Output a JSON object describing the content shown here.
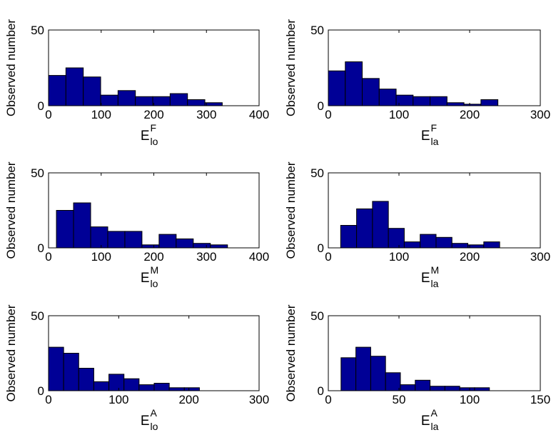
{
  "chart_data": [
    {
      "type": "bar",
      "ylabel": "Observed number",
      "xlabel": {
        "main": "E",
        "sup": "F",
        "sub": "lo"
      },
      "xlim": [
        0,
        400
      ],
      "ylim": [
        0,
        50
      ],
      "xticks": [
        0,
        100,
        200,
        300,
        400
      ],
      "yticks": [
        0,
        50
      ],
      "bin_width": 33,
      "bins_start": [
        0,
        33,
        66,
        99,
        132,
        165,
        198,
        231,
        264,
        297
      ],
      "values": [
        20,
        25,
        19,
        7,
        10,
        6,
        6,
        8,
        4,
        2
      ]
    },
    {
      "type": "bar",
      "ylabel": "Observed number",
      "xlabel": {
        "main": "E",
        "sup": "F",
        "sub": "la"
      },
      "xlim": [
        0,
        300
      ],
      "ylim": [
        0,
        50
      ],
      "xticks": [
        0,
        100,
        200,
        300
      ],
      "yticks": [
        0,
        50
      ],
      "bin_width": 24,
      "bins_start": [
        0,
        24,
        48,
        72,
        96,
        120,
        144,
        168,
        192,
        216
      ],
      "values": [
        23,
        29,
        18,
        11,
        7,
        6,
        6,
        2,
        1,
        4
      ]
    },
    {
      "type": "bar",
      "ylabel": "Observed number",
      "xlabel": {
        "main": "E",
        "sup": "M",
        "sub": "lo"
      },
      "xlim": [
        0,
        400
      ],
      "ylim": [
        0,
        50
      ],
      "xticks": [
        0,
        100,
        200,
        300,
        400
      ],
      "yticks": [
        0,
        50
      ],
      "bin_width": 32.5,
      "bins_start": [
        15,
        47.5,
        80,
        112.5,
        145,
        177.5,
        210,
        242.5,
        275,
        307.5
      ],
      "values": [
        25,
        30,
        14,
        11,
        11,
        2,
        9,
        6,
        3,
        2
      ]
    },
    {
      "type": "bar",
      "ylabel": "Observed number",
      "xlabel": {
        "main": "E",
        "sup": "M",
        "sub": "la"
      },
      "xlim": [
        0,
        300
      ],
      "ylim": [
        0,
        50
      ],
      "xticks": [
        0,
        100,
        200,
        300
      ],
      "yticks": [
        0,
        50
      ],
      "bin_width": 22.5,
      "bins_start": [
        17.5,
        40,
        62.5,
        85,
        107.5,
        130,
        152.5,
        175,
        197.5,
        220
      ],
      "values": [
        15,
        26,
        31,
        13,
        4,
        9,
        7,
        3,
        2,
        4
      ]
    },
    {
      "type": "bar",
      "ylabel": "Observed number",
      "xlabel": {
        "main": "E",
        "sup": "A",
        "sub": "lo"
      },
      "xlim": [
        0,
        300
      ],
      "ylim": [
        0,
        50
      ],
      "xticks": [
        0,
        100,
        200,
        300
      ],
      "yticks": [
        0,
        50
      ],
      "bin_width": 21.5,
      "bins_start": [
        0,
        21.5,
        43,
        64.5,
        86,
        107.5,
        129,
        150.5,
        172,
        193.5
      ],
      "values": [
        29,
        25,
        15,
        6,
        11,
        8,
        4,
        5,
        2,
        2
      ]
    },
    {
      "type": "bar",
      "ylabel": "Observed number",
      "xlabel": {
        "main": "E",
        "sup": "A",
        "sub": "la"
      },
      "xlim": [
        0,
        150
      ],
      "ylim": [
        0,
        50
      ],
      "xticks": [
        0,
        50,
        100,
        150
      ],
      "yticks": [
        0,
        50
      ],
      "bin_width": 10.5,
      "bins_start": [
        9,
        19.5,
        30,
        40.5,
        51,
        61.5,
        72,
        82.5,
        93,
        103.5
      ],
      "values": [
        22,
        29,
        23,
        12,
        4,
        7,
        3,
        3,
        2,
        2
      ]
    }
  ]
}
